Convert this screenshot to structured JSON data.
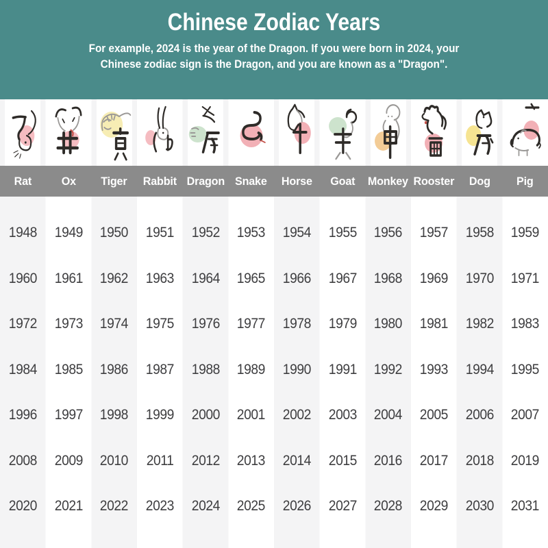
{
  "header": {
    "title": "Chinese Zodiac Years",
    "subtitle_line1": "For example, 2024 is the year of the Dragon. If you were born in 2024, your",
    "subtitle_line2": "Chinese zodiac sign is the Dragon, and you are known as a \"Dragon\".",
    "background_color": "#4a8b8a",
    "text_color": "#ffffff"
  },
  "table": {
    "name_band_color": "#8b8b8b",
    "stripe_color": "#f4f4f5",
    "year_text_color": "#3e3e40",
    "animals": [
      {
        "key": "rat",
        "label": "Rat",
        "zodiac_char": "子",
        "blob_color": "#f5bcc1"
      },
      {
        "key": "ox",
        "label": "Ox",
        "zodiac_char": "丑",
        "blob_color": "#f5bcc1"
      },
      {
        "key": "tiger",
        "label": "Tiger",
        "zodiac_char": "寅",
        "blob_color": "#f7edb4"
      },
      {
        "key": "rabbit",
        "label": "Rabbit",
        "zodiac_char": "卯",
        "blob_color": "#f5bcc1"
      },
      {
        "key": "dragon",
        "label": "Dragon",
        "zodiac_char": "辰",
        "blob_color": "#cde3cd"
      },
      {
        "key": "snake",
        "label": "Snake",
        "zodiac_char": "巳",
        "blob_color": "#f2b0b6"
      },
      {
        "key": "horse",
        "label": "Horse",
        "zodiac_char": "午",
        "blob_color": "#f2b0b6"
      },
      {
        "key": "goat",
        "label": "Goat",
        "zodiac_char": "未",
        "blob_color": "#cde3cd"
      },
      {
        "key": "monkey",
        "label": "Monkey",
        "zodiac_char": "申",
        "blob_color": "#f3cc96"
      },
      {
        "key": "rooster",
        "label": "Rooster",
        "zodiac_char": "酉",
        "blob_color": "#f2b0b6"
      },
      {
        "key": "dog",
        "label": "Dog",
        "zodiac_char": "戌",
        "blob_color": "#f6e492"
      },
      {
        "key": "pig",
        "label": "Pig",
        "zodiac_char": "亥",
        "blob_color": "#f2b0b6"
      }
    ],
    "year_rows": [
      [
        1948,
        1949,
        1950,
        1951,
        1952,
        1953,
        1954,
        1955,
        1956,
        1957,
        1958,
        1959
      ],
      [
        1960,
        1961,
        1962,
        1963,
        1964,
        1965,
        1966,
        1967,
        1968,
        1969,
        1970,
        1971
      ],
      [
        1972,
        1973,
        1974,
        1975,
        1976,
        1977,
        1978,
        1979,
        1980,
        1981,
        1982,
        1983
      ],
      [
        1984,
        1985,
        1986,
        1987,
        1988,
        1989,
        1990,
        1991,
        1992,
        1993,
        1994,
        1995
      ],
      [
        1996,
        1997,
        1998,
        1999,
        2000,
        2001,
        2002,
        2003,
        2004,
        2005,
        2006,
        2007
      ],
      [
        2008,
        2009,
        2010,
        2011,
        2012,
        2013,
        2014,
        2015,
        2016,
        2017,
        2018,
        2019
      ],
      [
        2020,
        2021,
        2022,
        2023,
        2024,
        2025,
        2026,
        2027,
        2028,
        2029,
        2030,
        2031
      ]
    ]
  },
  "chart_data": {
    "type": "table",
    "title": "Chinese Zodiac Years",
    "note": "For example, 2024 is the year of the Dragon. If you were born in 2024, your Chinese zodiac sign is the Dragon, and you are known as a \"Dragon\".",
    "columns": [
      "Rat",
      "Ox",
      "Tiger",
      "Rabbit",
      "Dragon",
      "Snake",
      "Horse",
      "Goat",
      "Monkey",
      "Rooster",
      "Dog",
      "Pig"
    ],
    "rows": [
      [
        1948,
        1949,
        1950,
        1951,
        1952,
        1953,
        1954,
        1955,
        1956,
        1957,
        1958,
        1959
      ],
      [
        1960,
        1961,
        1962,
        1963,
        1964,
        1965,
        1966,
        1967,
        1968,
        1969,
        1970,
        1971
      ],
      [
        1972,
        1973,
        1974,
        1975,
        1976,
        1977,
        1978,
        1979,
        1980,
        1981,
        1982,
        1983
      ],
      [
        1984,
        1985,
        1986,
        1987,
        1988,
        1989,
        1990,
        1991,
        1992,
        1993,
        1994,
        1995
      ],
      [
        1996,
        1997,
        1998,
        1999,
        2000,
        2001,
        2002,
        2003,
        2004,
        2005,
        2006,
        2007
      ],
      [
        2008,
        2009,
        2010,
        2011,
        2012,
        2013,
        2014,
        2015,
        2016,
        2017,
        2018,
        2019
      ],
      [
        2020,
        2021,
        2022,
        2023,
        2024,
        2025,
        2026,
        2027,
        2028,
        2029,
        2030,
        2031
      ]
    ]
  }
}
